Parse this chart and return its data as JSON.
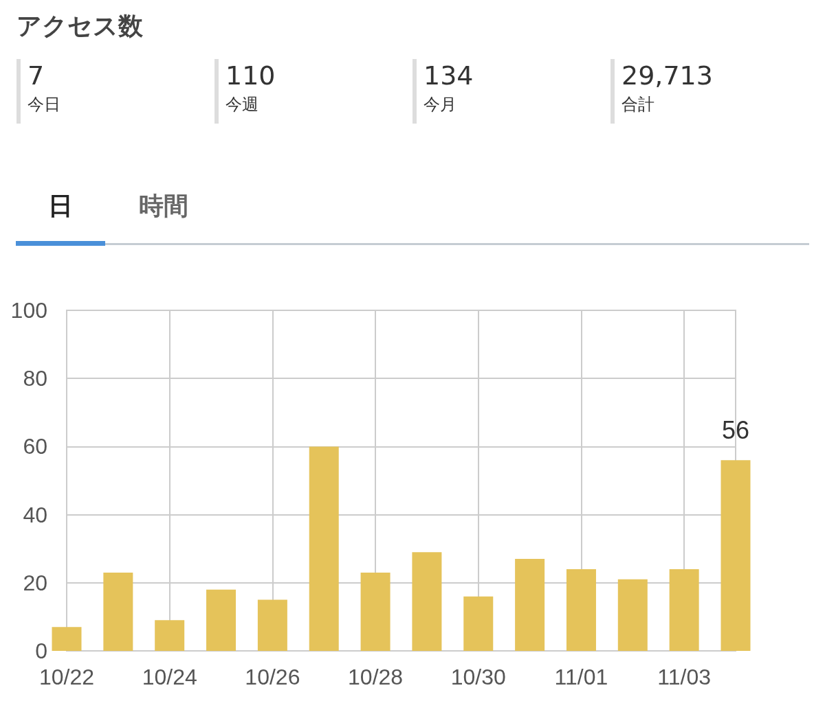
{
  "chart_data": [
    {
      "type": "other",
      "title": "アクセス数",
      "annotations": [
        "7",
        "今日",
        "110",
        "今週",
        "134",
        "今月",
        "29,713",
        "合計"
      ]
    },
    {
      "type": "bar",
      "annotations": [
        "日",
        "時間"
      ],
      "categories": [
        "10/22",
        null,
        "10/24",
        null,
        "10/26",
        null,
        "10/28",
        null,
        "10/30",
        null,
        "11/01",
        null,
        "11/03",
        null
      ],
      "values": [
        7,
        23,
        9,
        18,
        15,
        60,
        23,
        29,
        16,
        27,
        24,
        21,
        24,
        56
      ],
      "value_labels": [
        null,
        null,
        null,
        null,
        null,
        null,
        null,
        null,
        null,
        null,
        null,
        null,
        null,
        "56"
      ],
      "color": "#e5c35a",
      "ylim": [
        0,
        100
      ],
      "yticks": [
        0,
        20,
        40,
        60,
        80,
        100
      ],
      "grid": true
    }
  ]
}
